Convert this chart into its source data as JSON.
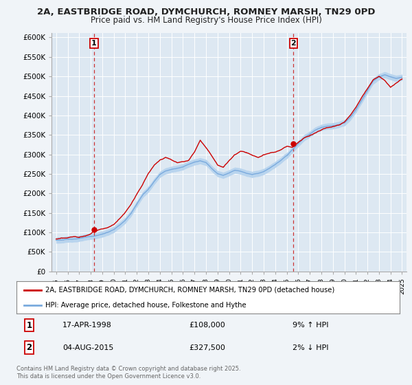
{
  "title_line1": "2A, EASTBRIDGE ROAD, DYMCHURCH, ROMNEY MARSH, TN29 0PD",
  "title_line2": "Price paid vs. HM Land Registry's House Price Index (HPI)",
  "ylabel_ticks": [
    "£0",
    "£50K",
    "£100K",
    "£150K",
    "£200K",
    "£250K",
    "£300K",
    "£350K",
    "£400K",
    "£450K",
    "£500K",
    "£550K",
    "£600K"
  ],
  "ytick_vals": [
    0,
    50000,
    100000,
    150000,
    200000,
    250000,
    300000,
    350000,
    400000,
    450000,
    500000,
    550000,
    600000
  ],
  "xlim_start": 1994.6,
  "xlim_end": 2025.4,
  "ylim_min": 0,
  "ylim_max": 612000,
  "sale1_year": 1998.29,
  "sale1_price": 108000,
  "sale2_year": 2015.59,
  "sale2_price": 327500,
  "red_line_color": "#cc0000",
  "blue_line_color": "#7aaadd",
  "blue_fill_color": "#b8d4ee",
  "background_color": "#f0f4f8",
  "plot_bg_color": "#dde8f2",
  "grid_color": "#ffffff",
  "marker_color": "#cc0000",
  "dashed_line_color": "#cc3333",
  "legend_label1": "2A, EASTBRIDGE ROAD, DYMCHURCH, ROMNEY MARSH, TN29 0PD (detached house)",
  "legend_label2": "HPI: Average price, detached house, Folkestone and Hythe",
  "footer": "Contains HM Land Registry data © Crown copyright and database right 2025.\nThis data is licensed under the Open Government Licence v3.0.",
  "annotation1_label": "1",
  "annotation1_date": "17-APR-1998",
  "annotation1_price": "£108,000",
  "annotation1_hpi": "9% ↑ HPI",
  "annotation2_label": "2",
  "annotation2_date": "04-AUG-2015",
  "annotation2_price": "£327,500",
  "annotation2_hpi": "2% ↓ HPI",
  "hpi_pts": [
    [
      1995.0,
      80000
    ],
    [
      1995.5,
      81000
    ],
    [
      1996.0,
      82000
    ],
    [
      1996.5,
      83500
    ],
    [
      1997.0,
      85000
    ],
    [
      1997.5,
      87000
    ],
    [
      1998.0,
      89000
    ],
    [
      1998.3,
      90000
    ],
    [
      1999.0,
      95000
    ],
    [
      1999.5,
      100000
    ],
    [
      2000.0,
      107000
    ],
    [
      2000.5,
      118000
    ],
    [
      2001.0,
      130000
    ],
    [
      2001.5,
      148000
    ],
    [
      2002.0,
      172000
    ],
    [
      2002.5,
      195000
    ],
    [
      2003.0,
      210000
    ],
    [
      2003.5,
      230000
    ],
    [
      2004.0,
      248000
    ],
    [
      2004.5,
      258000
    ],
    [
      2005.0,
      262000
    ],
    [
      2005.5,
      265000
    ],
    [
      2006.0,
      268000
    ],
    [
      2006.5,
      275000
    ],
    [
      2007.0,
      282000
    ],
    [
      2007.5,
      285000
    ],
    [
      2008.0,
      280000
    ],
    [
      2008.5,
      265000
    ],
    [
      2009.0,
      252000
    ],
    [
      2009.5,
      248000
    ],
    [
      2010.0,
      255000
    ],
    [
      2010.5,
      262000
    ],
    [
      2011.0,
      260000
    ],
    [
      2011.5,
      255000
    ],
    [
      2012.0,
      252000
    ],
    [
      2012.5,
      255000
    ],
    [
      2013.0,
      260000
    ],
    [
      2013.5,
      268000
    ],
    [
      2014.0,
      278000
    ],
    [
      2014.5,
      288000
    ],
    [
      2015.0,
      300000
    ],
    [
      2015.5,
      315000
    ],
    [
      2016.0,
      330000
    ],
    [
      2016.5,
      345000
    ],
    [
      2017.0,
      355000
    ],
    [
      2017.5,
      365000
    ],
    [
      2018.0,
      372000
    ],
    [
      2018.5,
      375000
    ],
    [
      2019.0,
      375000
    ],
    [
      2019.5,
      378000
    ],
    [
      2020.0,
      382000
    ],
    [
      2020.5,
      395000
    ],
    [
      2021.0,
      415000
    ],
    [
      2021.5,
      440000
    ],
    [
      2022.0,
      465000
    ],
    [
      2022.5,
      490000
    ],
    [
      2023.0,
      500000
    ],
    [
      2023.5,
      505000
    ],
    [
      2024.0,
      500000
    ],
    [
      2024.5,
      495000
    ],
    [
      2025.0,
      498000
    ]
  ],
  "red_pts": [
    [
      1995.0,
      83000
    ],
    [
      1995.5,
      84000
    ],
    [
      1996.0,
      85000
    ],
    [
      1996.5,
      87000
    ],
    [
      1997.0,
      89000
    ],
    [
      1997.5,
      93000
    ],
    [
      1998.0,
      100000
    ],
    [
      1998.3,
      108000
    ],
    [
      1998.8,
      112000
    ],
    [
      1999.0,
      113000
    ],
    [
      1999.5,
      118000
    ],
    [
      2000.0,
      125000
    ],
    [
      2000.5,
      140000
    ],
    [
      2001.0,
      158000
    ],
    [
      2001.5,
      178000
    ],
    [
      2002.0,
      205000
    ],
    [
      2002.5,
      228000
    ],
    [
      2003.0,
      258000
    ],
    [
      2003.5,
      278000
    ],
    [
      2004.0,
      292000
    ],
    [
      2004.5,
      300000
    ],
    [
      2005.0,
      295000
    ],
    [
      2005.5,
      288000
    ],
    [
      2006.0,
      290000
    ],
    [
      2006.5,
      295000
    ],
    [
      2007.0,
      318000
    ],
    [
      2007.5,
      348000
    ],
    [
      2008.0,
      328000
    ],
    [
      2008.5,
      308000
    ],
    [
      2009.0,
      285000
    ],
    [
      2009.5,
      278000
    ],
    [
      2010.0,
      295000
    ],
    [
      2010.5,
      310000
    ],
    [
      2011.0,
      318000
    ],
    [
      2011.5,
      315000
    ],
    [
      2012.0,
      308000
    ],
    [
      2012.5,
      302000
    ],
    [
      2013.0,
      308000
    ],
    [
      2013.5,
      312000
    ],
    [
      2014.0,
      315000
    ],
    [
      2014.5,
      322000
    ],
    [
      2015.0,
      330000
    ],
    [
      2015.5,
      327500
    ],
    [
      2016.0,
      340000
    ],
    [
      2016.5,
      352000
    ],
    [
      2017.0,
      358000
    ],
    [
      2017.5,
      365000
    ],
    [
      2018.0,
      372000
    ],
    [
      2018.5,
      378000
    ],
    [
      2019.0,
      380000
    ],
    [
      2019.5,
      385000
    ],
    [
      2020.0,
      392000
    ],
    [
      2020.5,
      408000
    ],
    [
      2021.0,
      428000
    ],
    [
      2021.5,
      455000
    ],
    [
      2022.0,
      478000
    ],
    [
      2022.5,
      500000
    ],
    [
      2023.0,
      510000
    ],
    [
      2023.5,
      498000
    ],
    [
      2024.0,
      480000
    ],
    [
      2024.5,
      490000
    ],
    [
      2025.0,
      500000
    ]
  ]
}
